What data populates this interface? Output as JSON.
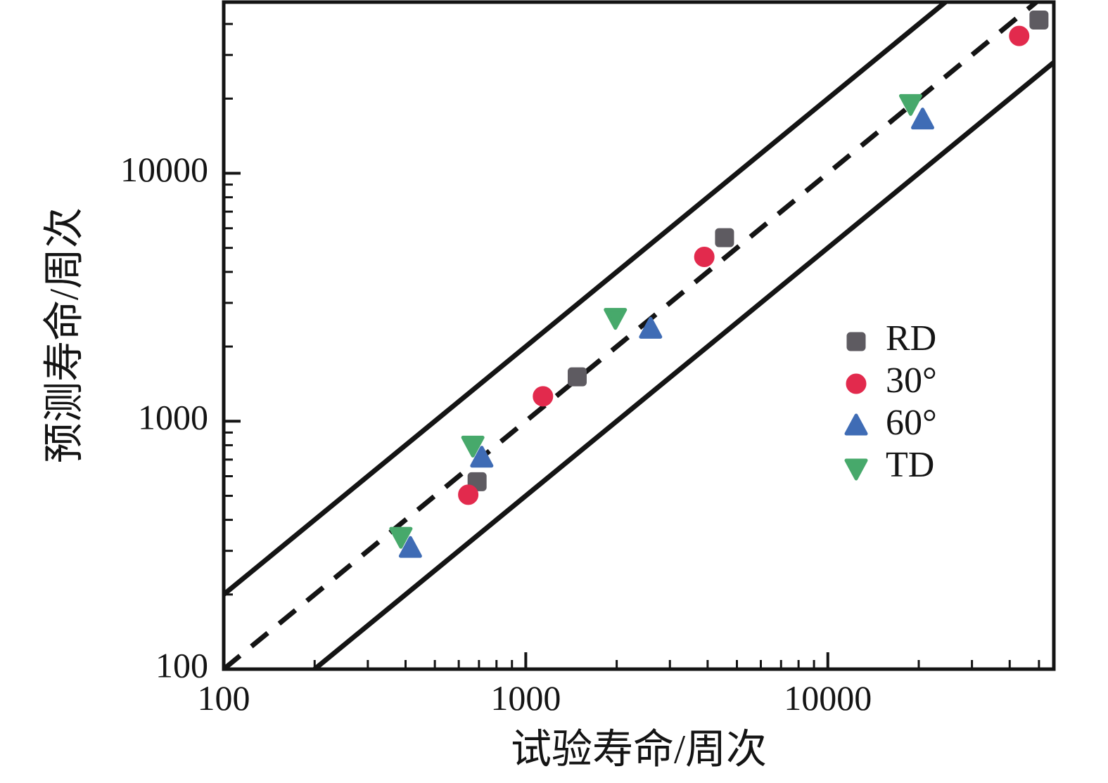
{
  "chart_data": {
    "type": "scatter",
    "title": "",
    "x_axis": {
      "label": "试验寿命/周次",
      "scale": "log",
      "min": 100,
      "max": 56000,
      "major_ticks": [
        100,
        1000,
        10000
      ],
      "tick_labels": [
        "100",
        "1000",
        "10000"
      ]
    },
    "y_axis": {
      "label": "预测寿命/周次",
      "scale": "log",
      "min": 100,
      "max": 49000,
      "major_ticks": [
        100,
        1000,
        10000
      ],
      "tick_labels": [
        "100",
        "1000",
        "10000"
      ]
    },
    "series": [
      {
        "name": "RD",
        "marker": "square",
        "color": "#5e5b61",
        "points": [
          [
            690,
            570
          ],
          [
            1480,
            1510
          ],
          [
            4550,
            5500
          ],
          [
            50000,
            41500
          ]
        ]
      },
      {
        "name": "30°",
        "marker": "circle",
        "color": "#e22a4d",
        "points": [
          [
            645,
            505
          ],
          [
            1140,
            1260
          ],
          [
            3900,
            4600
          ],
          [
            43000,
            35800
          ]
        ]
      },
      {
        "name": "60°",
        "marker": "triangle-up",
        "color": "#3f6cb5",
        "points": [
          [
            415,
            307
          ],
          [
            715,
            710
          ],
          [
            2590,
            2350
          ],
          [
            20600,
            16400
          ]
        ]
      },
      {
        "name": "TD",
        "marker": "triangle-down",
        "color": "#47a96b",
        "points": [
          [
            386,
            343
          ],
          [
            668,
            800
          ],
          [
            1980,
            2620
          ],
          [
            18800,
            19100
          ]
        ]
      }
    ],
    "reference_lines": [
      {
        "name": "identity-line",
        "equation": "y = x",
        "factor": 1,
        "style": "dashed"
      },
      {
        "name": "upper-bound-line",
        "equation": "y = 2x",
        "factor": 2,
        "style": "solid"
      },
      {
        "name": "lower-bound-line",
        "equation": "y = x/2",
        "factor": 0.5,
        "style": "solid"
      }
    ],
    "legend": {
      "position": "right-center",
      "items": [
        "RD",
        "30°",
        "60°",
        "TD"
      ]
    },
    "grid": "off",
    "line_color": "#141414"
  }
}
